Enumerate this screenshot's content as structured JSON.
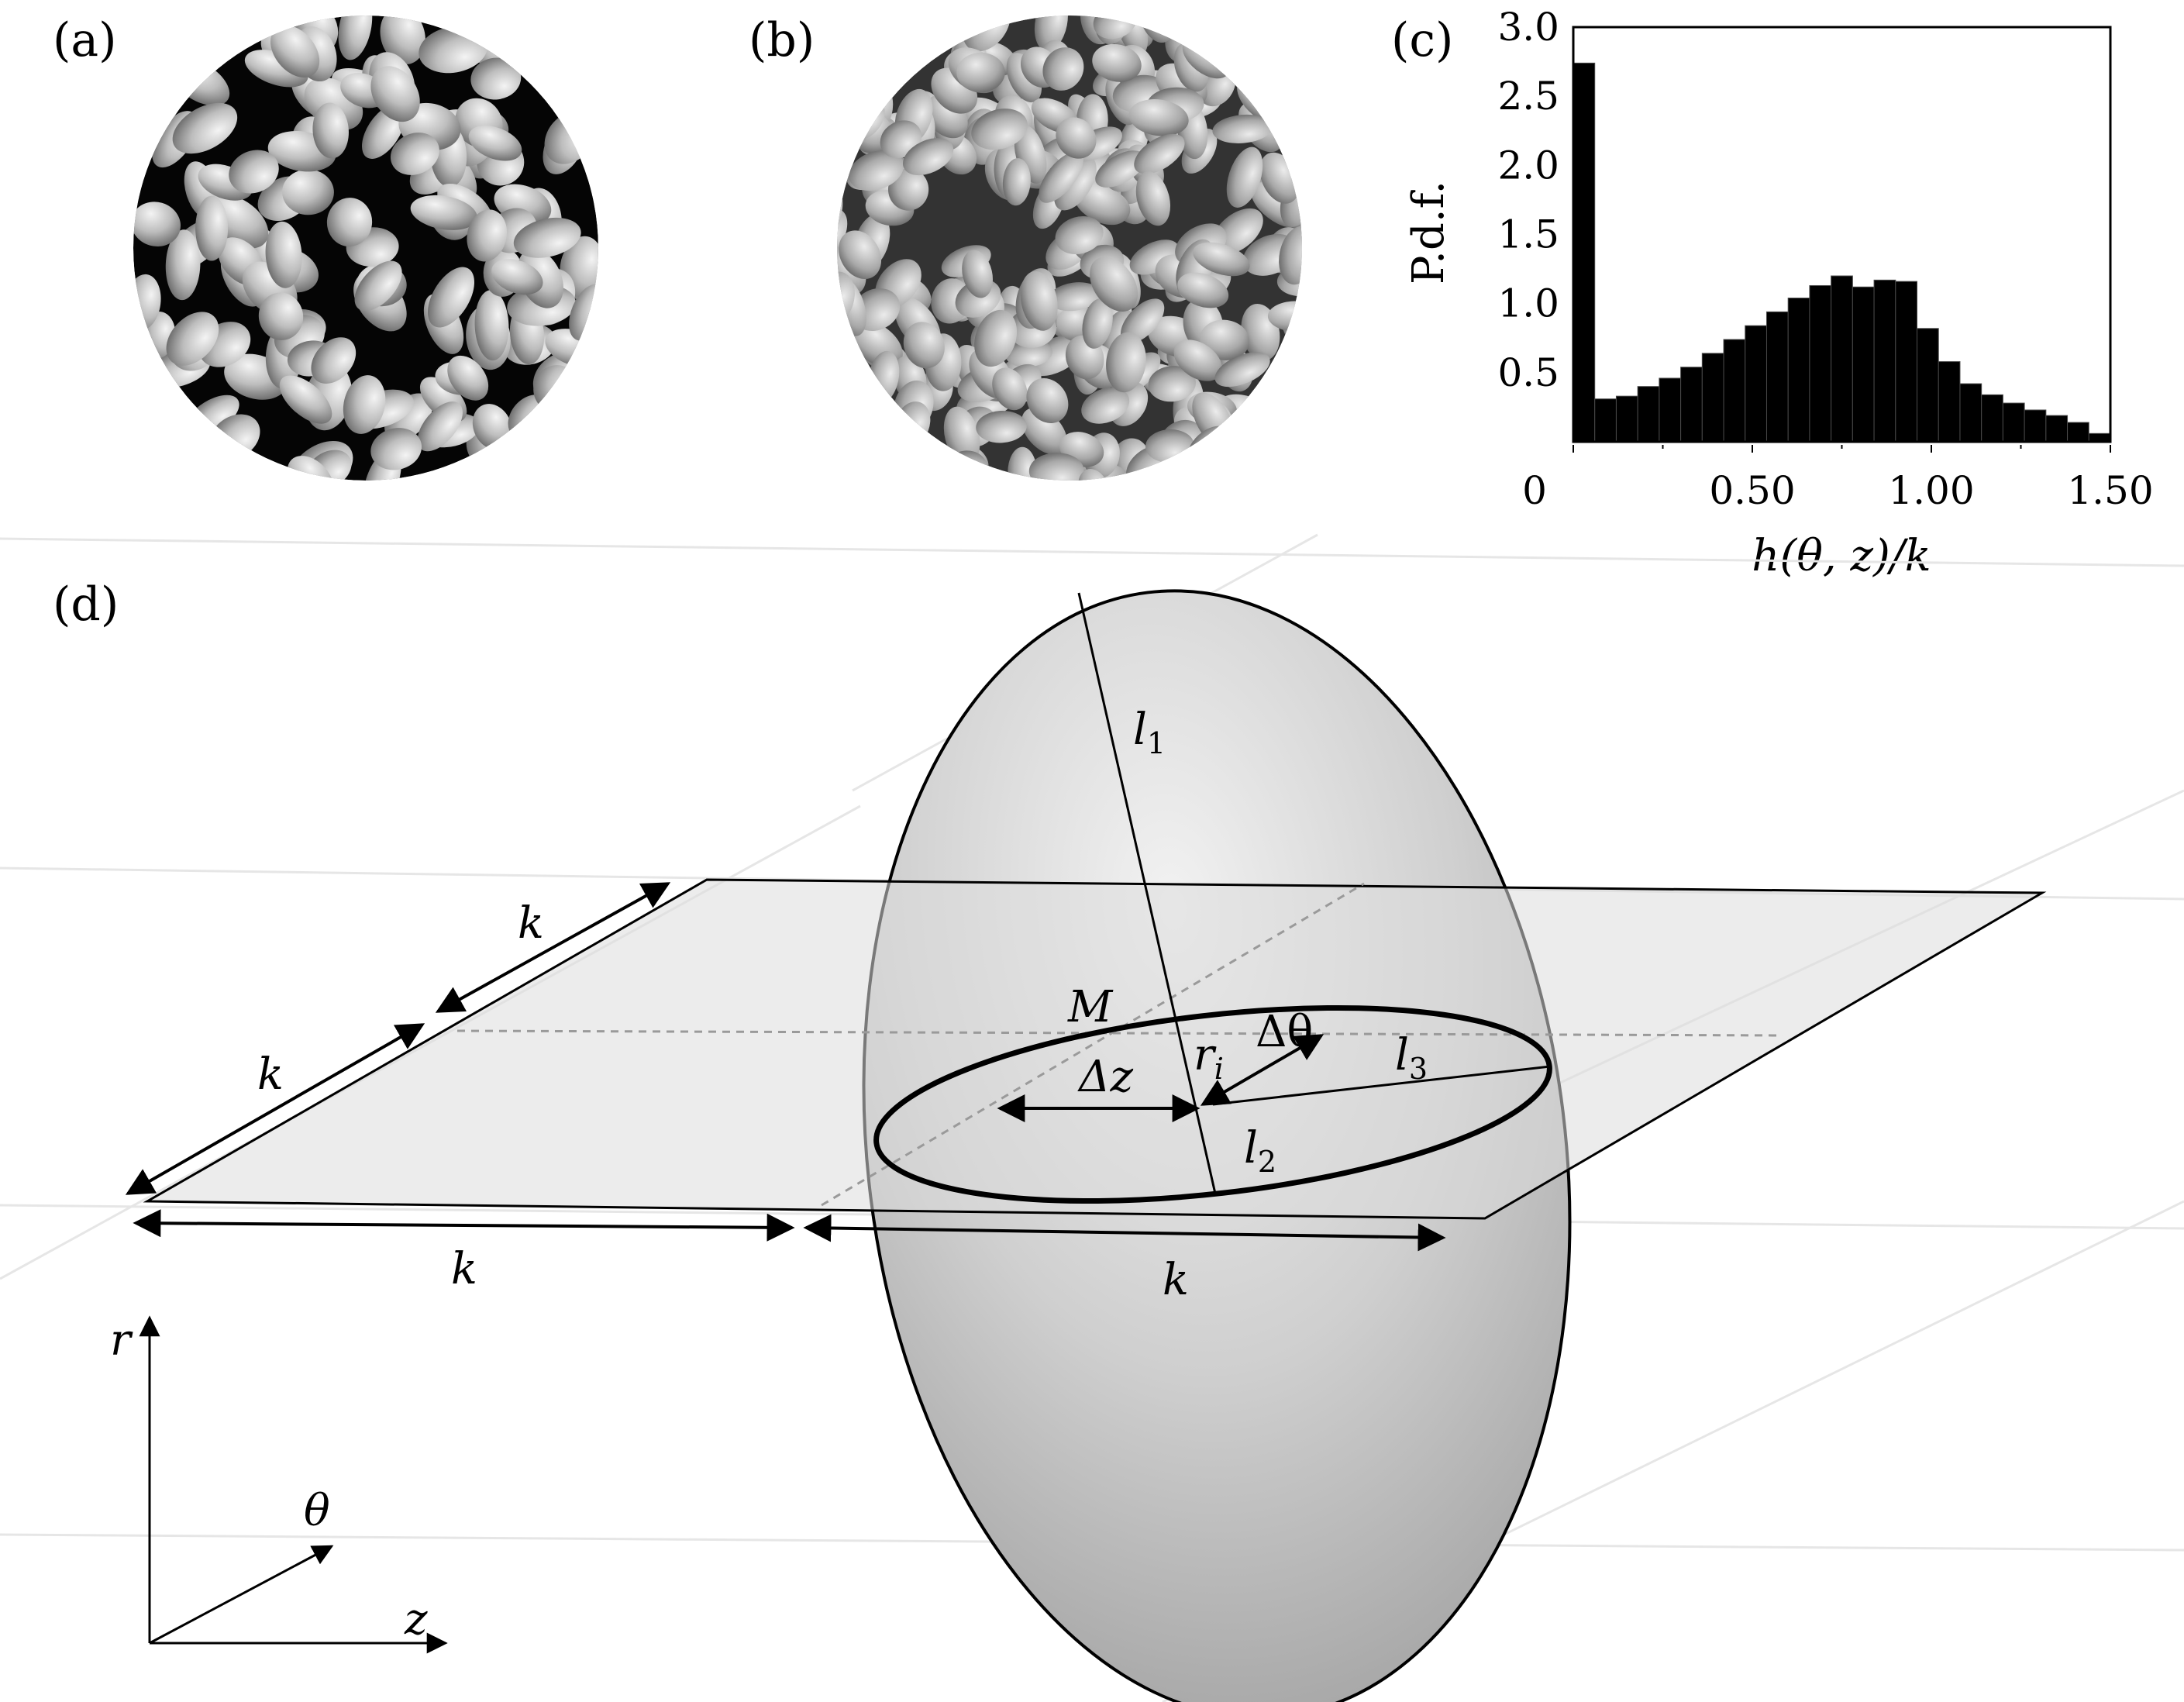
{
  "panels": {
    "a": "(a)",
    "b": "(b)",
    "c": "(c)",
    "d": "(d)"
  },
  "chart_data": {
    "type": "bar",
    "xlabel": "h(θ, z)/k",
    "ylabel": "P.d.f.",
    "xlim": [
      0,
      1.5
    ],
    "ylim": [
      0,
      3.0
    ],
    "bin_width": 0.06,
    "x_tick_labels": [
      "0",
      "0.50",
      "1.00",
      "1.50"
    ],
    "x_tick_values": [
      0,
      0.5,
      1.0,
      1.5
    ],
    "y_tick_labels": [
      "0.5",
      "1.0",
      "1.5",
      "2.0",
      "2.5",
      "3.0"
    ],
    "y_tick_values": [
      0.5,
      1.0,
      1.5,
      2.0,
      2.5,
      3.0
    ],
    "bin_starts": [
      0,
      0.06,
      0.12,
      0.18,
      0.24,
      0.3,
      0.36,
      0.42,
      0.48,
      0.54,
      0.6,
      0.66,
      0.72,
      0.78,
      0.84,
      0.9,
      0.96,
      1.02,
      1.08,
      1.14,
      1.2,
      1.26,
      1.32,
      1.38,
      1.44
    ],
    "values": [
      2.74,
      0.31,
      0.33,
      0.4,
      0.46,
      0.54,
      0.64,
      0.74,
      0.84,
      0.94,
      1.04,
      1.13,
      1.2,
      1.12,
      1.17,
      1.16,
      0.82,
      0.58,
      0.42,
      0.34,
      0.28,
      0.23,
      0.19,
      0.14,
      0.06
    ]
  },
  "diagram": {
    "labels": {
      "l1": "l",
      "l1_sub": "1",
      "l2": "l",
      "l2_sub": "2",
      "l3": "l",
      "l3_sub": "3",
      "M": "M",
      "ri": "r",
      "ri_sub": "i",
      "dtheta": "Δθ",
      "dz": "Δz",
      "k_top": "k",
      "k_left": "k",
      "k_bottom_left": "k",
      "k_bottom_right": "k",
      "axis_r": "r",
      "axis_theta": "θ",
      "axis_z": "z"
    }
  }
}
